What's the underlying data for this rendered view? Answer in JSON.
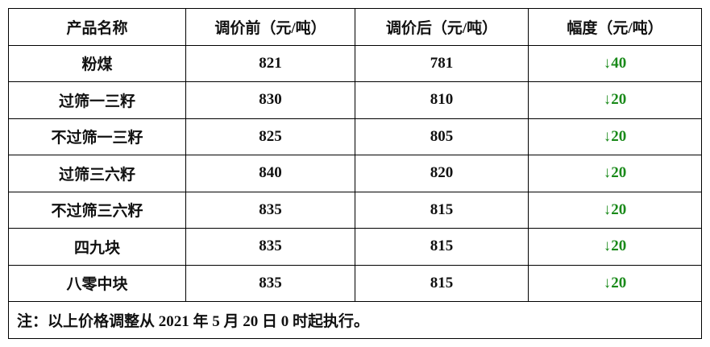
{
  "table": {
    "header": [
      "产品名称",
      "调价前（元/吨）",
      "调价后（元/吨）",
      "幅度（元/吨）"
    ],
    "rows": [
      [
        "粉煤",
        "821",
        "781",
        "↓40"
      ],
      [
        "过筛一三籽",
        "830",
        "810",
        "↓20"
      ],
      [
        "不过筛一三籽",
        "825",
        "805",
        "↓20"
      ],
      [
        "过筛三六籽",
        "840",
        "820",
        "↓20"
      ],
      [
        "不过筛三六籽",
        "835",
        "815",
        "↓20"
      ],
      [
        "四九块",
        "835",
        "815",
        "↓20"
      ],
      [
        "八零中块",
        "835",
        "815",
        "↓20"
      ]
    ],
    "note": "注：以上价格调整从 2021 年 5 月 20 日 0 时起执行。"
  }
}
